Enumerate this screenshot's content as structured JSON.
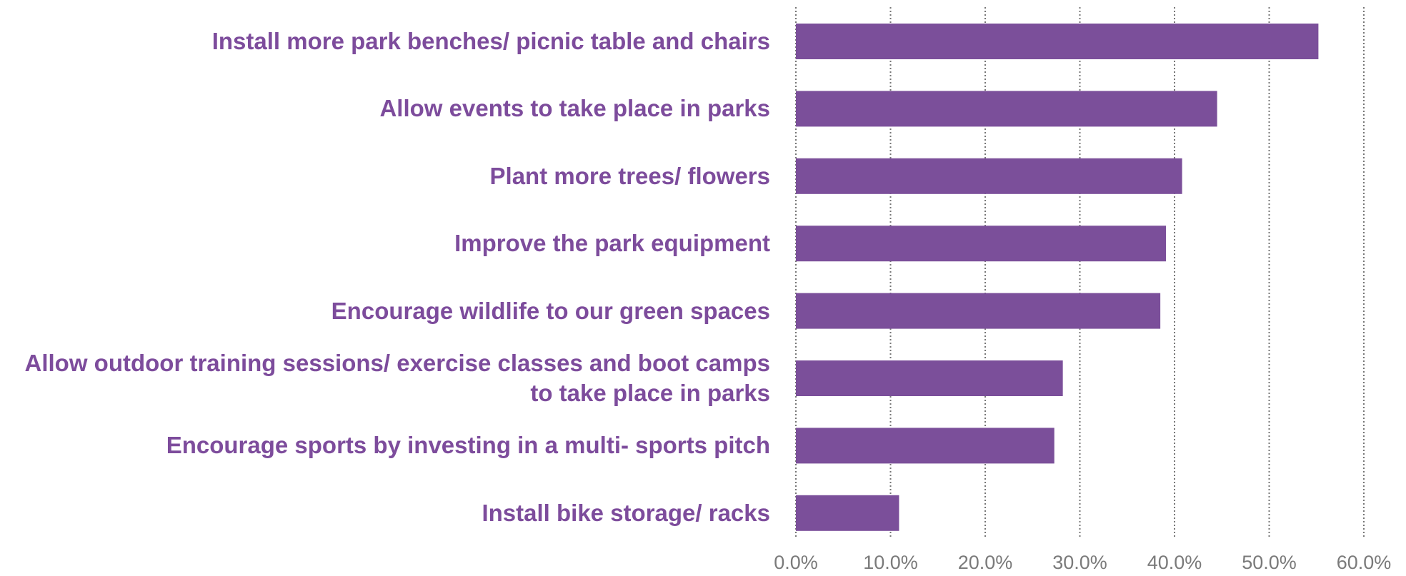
{
  "chart_data": {
    "type": "hbar",
    "categories": [
      "Install more park benches/ picnic table and chairs",
      "Allow events to take place in parks",
      "Plant more trees/ flowers",
      "Improve the park equipment",
      "Encourage wildlife to our green spaces",
      "Allow outdoor training sessions/ exercise classes and boot camps to take place in parks",
      "Encourage sports by investing in a multi- sports pitch",
      "Install bike storage/ racks"
    ],
    "values": [
      55.2,
      44.5,
      40.8,
      39.1,
      38.5,
      28.2,
      27.3,
      10.9
    ],
    "color": "#7b4f9a",
    "xlim": [
      0,
      60
    ],
    "xticks": [
      {
        "value": 0,
        "label": "0.0%"
      },
      {
        "value": 10,
        "label": "10.0%"
      },
      {
        "value": 20,
        "label": "20.0%"
      },
      {
        "value": 30,
        "label": "30.0%"
      },
      {
        "value": 40,
        "label": "40.0%"
      },
      {
        "value": 50,
        "label": "50.0%"
      },
      {
        "value": 60,
        "label": "60.0%"
      }
    ],
    "grid": true
  }
}
